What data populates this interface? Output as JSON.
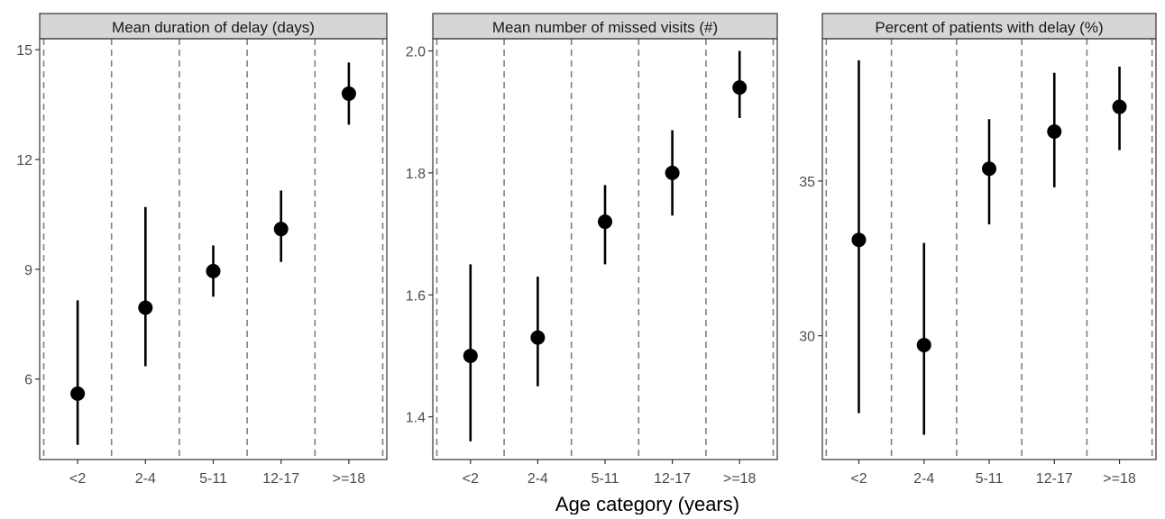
{
  "xlabel": "Age category (years)",
  "colors": {
    "strip_fill": "#d6d6d6",
    "strip_border": "#333333",
    "panel_border": "#333333",
    "vline": "#808080",
    "point": "#000000",
    "axis_text": "#4d4d4d",
    "xlabel_text": "#000000"
  },
  "chart_data": [
    {
      "type": "scatter",
      "subtype": "point-range",
      "title": "Mean duration of delay (days)",
      "categories": [
        "<2",
        "2-4",
        "5-11",
        "12-17",
        ">=18"
      ],
      "values": [
        5.6,
        7.95,
        8.95,
        10.1,
        13.8
      ],
      "lower": [
        4.2,
        6.35,
        8.25,
        9.2,
        12.95
      ],
      "upper": [
        8.15,
        10.7,
        9.65,
        11.15,
        14.65
      ],
      "yticks": [
        6,
        9,
        12,
        15
      ],
      "ylim": [
        3.8,
        15.3
      ],
      "grid": "vertical-dashed",
      "legend": "none"
    },
    {
      "type": "scatter",
      "subtype": "point-range",
      "title": "Mean number of missed visits (#)",
      "categories": [
        "<2",
        "2-4",
        "5-11",
        "12-17",
        ">=18"
      ],
      "values": [
        1.5,
        1.53,
        1.72,
        1.8,
        1.94
      ],
      "lower": [
        1.36,
        1.45,
        1.65,
        1.73,
        1.89
      ],
      "upper": [
        1.65,
        1.63,
        1.78,
        1.87,
        2.0
      ],
      "yticks": [
        "1.4",
        "1.6",
        "1.8",
        "2.0"
      ],
      "ylim": [
        1.33,
        2.02
      ],
      "grid": "vertical-dashed",
      "legend": "none"
    },
    {
      "type": "scatter",
      "subtype": "point-range",
      "title": "Percent of patients with delay (%)",
      "categories": [
        "<2",
        "2-4",
        "5-11",
        "12-17",
        ">=18"
      ],
      "values": [
        33.1,
        29.7,
        35.4,
        36.6,
        37.4
      ],
      "lower": [
        27.5,
        26.8,
        33.6,
        34.8,
        36.0
      ],
      "upper": [
        38.9,
        33.0,
        37.0,
        38.5,
        38.7
      ],
      "yticks": [
        30,
        35
      ],
      "ylim": [
        26.0,
        39.6
      ],
      "grid": "vertical-dashed",
      "legend": "none"
    }
  ]
}
